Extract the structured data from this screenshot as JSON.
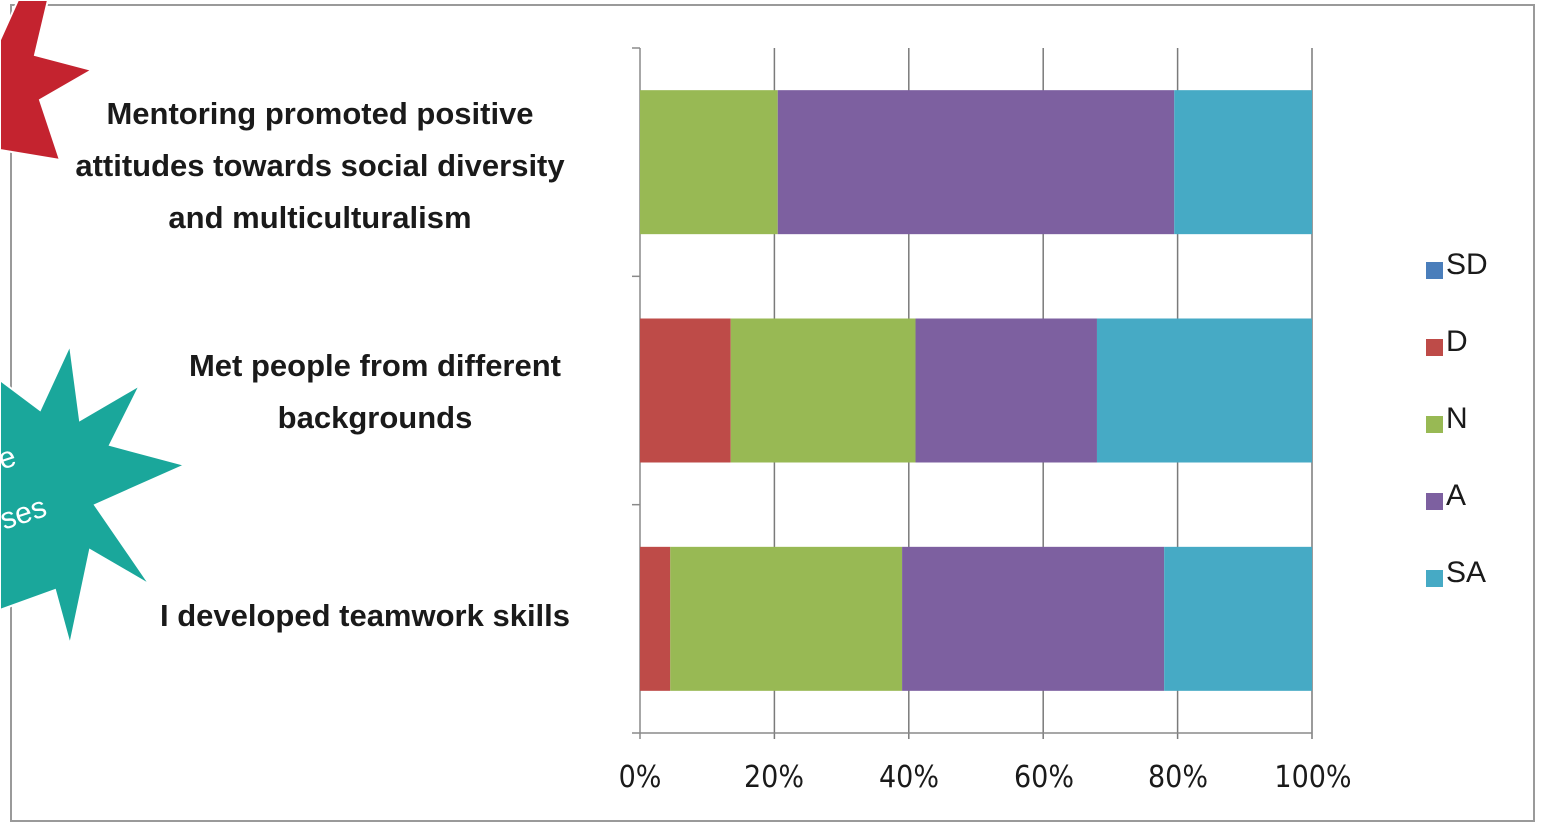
{
  "callouts": {
    "teal_fragment_1": "e",
    "teal_fragment_2": "ses",
    "red_color": "#c4232f",
    "teal_color": "#1aa79b"
  },
  "chart_data": {
    "type": "bar",
    "orientation": "horizontal",
    "stacked": "percent",
    "categories": [
      "Mentoring promoted positive\nattitudes towards social diversity\nand multiculturalism",
      "Met people from different\nbackgrounds",
      "I developed teamwork skills"
    ],
    "series": [
      {
        "name": "SD",
        "color": "#4a7ebb",
        "values": [
          0,
          0,
          0
        ]
      },
      {
        "name": "D",
        "color": "#be4b48",
        "values": [
          0,
          13.5,
          4.5
        ]
      },
      {
        "name": "N",
        "color": "#98b954",
        "values": [
          20.5,
          27.5,
          34.5
        ]
      },
      {
        "name": "A",
        "color": "#7d60a0",
        "values": [
          59,
          27,
          39
        ]
      },
      {
        "name": "SA",
        "color": "#46aac5",
        "values": [
          20.5,
          32,
          22
        ]
      }
    ],
    "x_ticks": [
      "0%",
      "20%",
      "40%",
      "60%",
      "80%",
      "100%"
    ],
    "xlim": [
      0,
      100
    ],
    "grid": true,
    "legend": "right"
  }
}
